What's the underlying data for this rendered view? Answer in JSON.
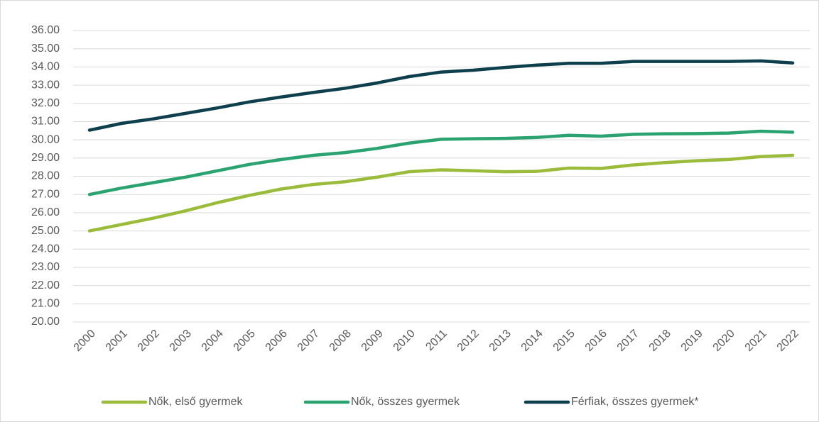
{
  "chart_data": {
    "type": "line",
    "x": [
      "2000",
      "2001",
      "2002",
      "2003",
      "2004",
      "2005",
      "2006",
      "2007",
      "2008",
      "2009",
      "2010",
      "2011",
      "2012",
      "2013",
      "2014",
      "2015",
      "2016",
      "2017",
      "2018",
      "2019",
      "2020",
      "2021",
      "2022"
    ],
    "series": [
      {
        "name": "Nők, első gyermek",
        "color": "#9bbb3b",
        "values": [
          25.0,
          25.35,
          25.7,
          26.1,
          26.55,
          26.95,
          27.3,
          27.55,
          27.7,
          27.95,
          28.25,
          28.35,
          28.3,
          28.25,
          28.27,
          28.45,
          28.43,
          28.62,
          28.75,
          28.85,
          28.92,
          29.08,
          29.15
        ]
      },
      {
        "name": "Nők, összes gyermek",
        "color": "#2aa371",
        "values": [
          27.0,
          27.35,
          27.65,
          27.95,
          28.3,
          28.65,
          28.92,
          29.15,
          29.3,
          29.53,
          29.82,
          30.03,
          30.06,
          30.08,
          30.13,
          30.25,
          30.2,
          30.3,
          30.33,
          30.34,
          30.37,
          30.47,
          30.42
        ]
      },
      {
        "name": "Férfiak, összes gyermek*",
        "color": "#0e3f4c",
        "values": [
          30.53,
          30.9,
          31.15,
          31.45,
          31.75,
          32.08,
          32.35,
          32.6,
          32.83,
          33.12,
          33.47,
          33.72,
          33.82,
          33.97,
          34.1,
          34.2,
          34.2,
          34.3,
          34.3,
          34.3,
          34.3,
          34.33,
          34.22
        ]
      }
    ],
    "ylim": [
      20,
      36
    ],
    "yticks": [
      {
        "value": 20,
        "label": "20.00"
      },
      {
        "value": 21,
        "label": "21.00"
      },
      {
        "value": 22,
        "label": "22.00"
      },
      {
        "value": 23,
        "label": "23.00"
      },
      {
        "value": 24,
        "label": "24.00"
      },
      {
        "value": 25,
        "label": "25.00"
      },
      {
        "value": 26,
        "label": "26.00"
      },
      {
        "value": 27,
        "label": "27.00"
      },
      {
        "value": 28,
        "label": "28.00"
      },
      {
        "value": 29,
        "label": "29.00"
      },
      {
        "value": 30,
        "label": "30.00"
      },
      {
        "value": 31,
        "label": "31.00"
      },
      {
        "value": 32,
        "label": "32.00"
      },
      {
        "value": 33,
        "label": "33.00"
      },
      {
        "value": 34,
        "label": "34.00"
      },
      {
        "value": 35,
        "label": "35.00"
      },
      {
        "value": 36,
        "label": "36.00"
      }
    ],
    "grid": true,
    "legend": "bottom"
  }
}
